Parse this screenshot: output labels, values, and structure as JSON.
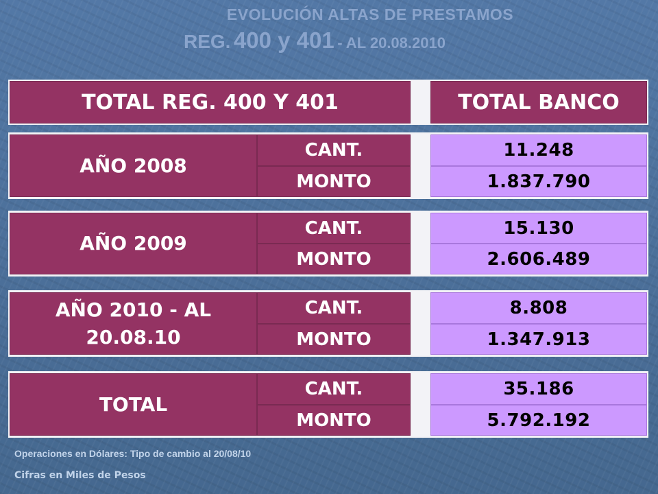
{
  "title": {
    "line1": "EVOLUCIÓN ALTAS DE PRESTAMOS",
    "line2_reg": "REG.",
    "line2_nums": "400 y 401",
    "line2_date": "- AL 20.08.2010"
  },
  "headers": {
    "left": "TOTAL REG. 400 Y 401",
    "right": "TOTAL BANCO"
  },
  "rows": [
    {
      "label": "AÑO 2008",
      "cant_label": "CANT.",
      "monto_label": "MONTO",
      "cant": "11.248",
      "monto": "1.837.790"
    },
    {
      "label": "AÑO 2009",
      "cant_label": "CANT.",
      "monto_label": "MONTO",
      "cant": "15.130",
      "monto": "2.606.489"
    },
    {
      "label": "AÑO 2010 -  AL 20.08.10",
      "cant_label": "CANT.",
      "monto_label": "MONTO",
      "cant": "8.808",
      "monto": "1.347.913"
    },
    {
      "label": "TOTAL",
      "cant_label": "CANT.",
      "monto_label": "MONTO",
      "cant": "35.186",
      "monto": "5.792.192"
    }
  ],
  "notes": {
    "operations": "Operaciones en Dólares: Tipo de cambio al 20/08/10",
    "units": "Cifras en Miles de Pesos"
  }
}
